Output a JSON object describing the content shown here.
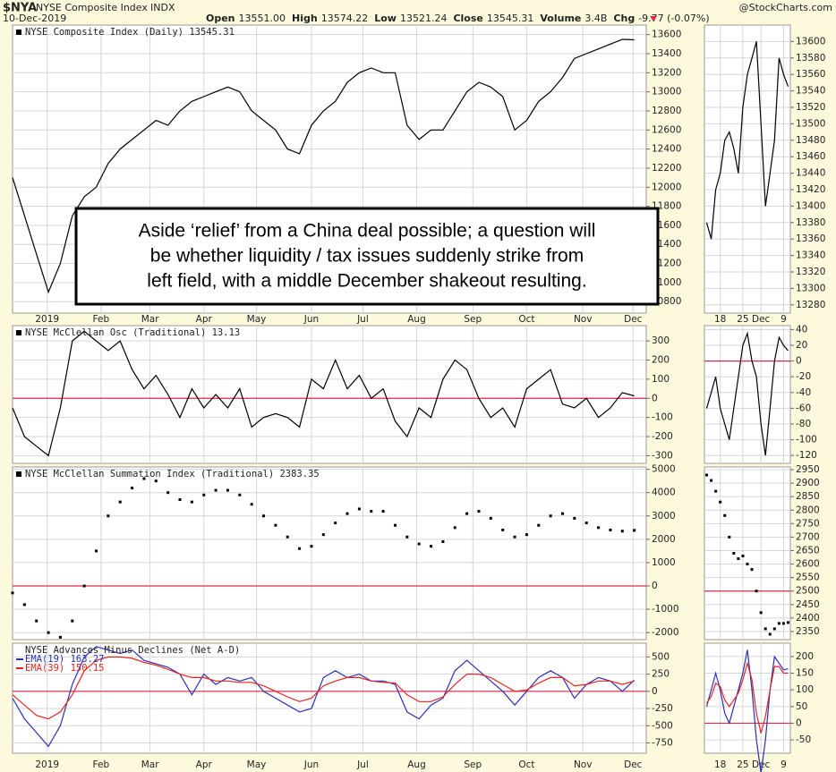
{
  "header": {
    "symbol": "$NYA",
    "name": "NYSE Composite Index",
    "exchange": "INDX",
    "date": "10-Dec-2019",
    "quote": [
      {
        "label": "Open",
        "value": "13551.00"
      },
      {
        "label": "High",
        "value": "13574.22"
      },
      {
        "label": "Low",
        "value": "13521.24"
      },
      {
        "label": "Close",
        "value": "13545.31"
      },
      {
        "label": "Volume",
        "value": "3.4B"
      },
      {
        "label": "Chg",
        "value": "-9.77 (-0.07%)"
      }
    ],
    "source": "@StockCharts.com"
  },
  "annotation": {
    "lines": [
      "Aside ‘relief’ from a China deal possible; a question will",
      "be whether liquidity / tax issues suddenly strike from",
      "left field, with a middle December shakeout resulting."
    ]
  },
  "chart_data": [
    {
      "type": "line",
      "title": "NYSE Composite Index (Daily) 13545.31",
      "x": [
        0,
        1,
        2,
        3,
        4,
        5,
        6,
        7,
        8,
        9,
        10,
        11,
        12,
        13,
        14,
        15,
        16,
        17,
        18,
        19,
        20,
        21,
        22,
        23,
        24,
        25,
        26,
        27,
        28,
        29,
        30,
        31,
        32,
        33,
        34,
        35,
        36,
        37,
        38,
        39,
        40,
        41,
        42,
        43,
        44,
        45,
        46,
        47,
        48,
        49,
        50,
        51,
        52
      ],
      "series": [
        {
          "color": "#000000",
          "values": [
            12100,
            11700,
            11300,
            10900,
            11200,
            11700,
            11900,
            12000,
            12250,
            12400,
            12500,
            12600,
            12700,
            12650,
            12800,
            12900,
            12950,
            13000,
            13050,
            13000,
            12800,
            12700,
            12600,
            12400,
            12350,
            12650,
            12800,
            12900,
            13100,
            13200,
            13250,
            13200,
            13200,
            12650,
            12500,
            12600,
            12600,
            12800,
            13000,
            13100,
            13050,
            12950,
            12600,
            12700,
            12900,
            13000,
            13150,
            13350,
            13400,
            13450,
            13500,
            13550,
            13545.31
          ]
        }
      ],
      "xlim": [
        0,
        53
      ],
      "ylim": [
        10680,
        13700
      ],
      "yticks": [
        10800,
        11000,
        11200,
        11400,
        11600,
        11800,
        12000,
        12200,
        12400,
        12600,
        12800,
        13000,
        13200,
        13400,
        13600
      ],
      "xticks": [
        {
          "value": 2.9,
          "label": "2019"
        },
        {
          "value": 7.4,
          "label": "Feb"
        },
        {
          "value": 11.5,
          "label": "Mar"
        },
        {
          "value": 16.0,
          "label": "Apr"
        },
        {
          "value": 20.4,
          "label": "May"
        },
        {
          "value": 25.0,
          "label": "Jun"
        },
        {
          "value": 29.3,
          "label": "Jul"
        },
        {
          "value": 33.8,
          "label": "Aug"
        },
        {
          "value": 38.5,
          "label": "Sep"
        },
        {
          "value": 43.0,
          "label": "Oct"
        },
        {
          "value": 47.7,
          "label": "Nov"
        },
        {
          "value": 51.9,
          "label": "Dec"
        }
      ],
      "grid": true
    },
    {
      "type": "line",
      "x": [
        0,
        1,
        2,
        3,
        4,
        5,
        6,
        7,
        8,
        9,
        10,
        11,
        12,
        13,
        14,
        15,
        16,
        17,
        18
      ],
      "series": [
        {
          "color": "#000000",
          "values": [
            13380,
            13360,
            13420,
            13440,
            13480,
            13490,
            13470,
            13440,
            13520,
            13560,
            13580,
            13600,
            13500,
            13400,
            13440,
            13480,
            13580,
            13560,
            13545.31
          ]
        }
      ],
      "xlim": [
        -0.5,
        18.5
      ],
      "ylim": [
        13270,
        13620
      ],
      "yticks": [
        13280,
        13300,
        13320,
        13340,
        13360,
        13380,
        13400,
        13420,
        13440,
        13460,
        13480,
        13500,
        13520,
        13540,
        13560,
        13580,
        13600
      ],
      "xticks": [
        {
          "value": 3,
          "label": "18"
        },
        {
          "value": 8,
          "label": "25"
        },
        {
          "value": 12,
          "label": "Dec"
        },
        {
          "value": 17,
          "label": "9"
        }
      ],
      "grid": true
    },
    {
      "type": "line",
      "title": "NYSE McClellan Osc (Traditional) 13.13",
      "x": [
        0,
        1,
        2,
        3,
        4,
        5,
        6,
        7,
        8,
        9,
        10,
        11,
        12,
        13,
        14,
        15,
        16,
        17,
        18,
        19,
        20,
        21,
        22,
        23,
        24,
        25,
        26,
        27,
        28,
        29,
        30,
        31,
        32,
        33,
        34,
        35,
        36,
        37,
        38,
        39,
        40,
        41,
        42,
        43,
        44,
        45,
        46,
        47,
        48,
        49,
        50,
        51,
        52
      ],
      "series": [
        {
          "color": "#000000",
          "values": [
            -50,
            -200,
            -250,
            -300,
            -50,
            300,
            350,
            300,
            250,
            300,
            150,
            50,
            120,
            20,
            -100,
            50,
            -50,
            20,
            -50,
            50,
            -150,
            -100,
            -80,
            -100,
            -150,
            100,
            50,
            200,
            50,
            120,
            0,
            50,
            -120,
            -200,
            -50,
            -100,
            100,
            200,
            150,
            0,
            -100,
            -50,
            -150,
            50,
            100,
            150,
            -30,
            -50,
            0,
            -100,
            -50,
            30,
            13.13
          ]
        }
      ],
      "xlim": [
        0,
        53
      ],
      "ylim": [
        -340,
        380
      ],
      "yticks": [
        -300,
        -200,
        -100,
        0,
        100,
        200,
        300
      ],
      "xticks": [
        2.9,
        7.4,
        11.5,
        16.0,
        20.4,
        25.0,
        29.3,
        33.8,
        38.5,
        43.0,
        47.7,
        51.9
      ],
      "grid": true,
      "hline": 0,
      "hline_color": "#e0284a"
    },
    {
      "type": "line",
      "x": [
        0,
        1,
        2,
        3,
        4,
        5,
        6,
        7,
        8,
        9,
        10,
        11,
        12,
        13,
        14,
        15,
        16,
        17,
        18
      ],
      "series": [
        {
          "color": "#000000",
          "values": [
            -60,
            -40,
            -20,
            -60,
            -80,
            -100,
            -60,
            -20,
            20,
            35,
            0,
            -20,
            -80,
            -120,
            -60,
            0,
            30,
            20,
            13.13
          ]
        }
      ],
      "xlim": [
        -0.5,
        18.5
      ],
      "ylim": [
        -130,
        45
      ],
      "yticks": [
        -120,
        -100,
        -80,
        -60,
        -40,
        -20,
        0,
        20,
        40
      ],
      "xticks": [
        3,
        8,
        12,
        17
      ],
      "grid": true,
      "hline": 0,
      "hline_color": "#e0284a"
    },
    {
      "type": "scatter",
      "title": "NYSE McClellan Summation Index (Traditional) 2383.35",
      "x": [
        0,
        1,
        2,
        3,
        4,
        5,
        6,
        7,
        8,
        9,
        10,
        11,
        12,
        13,
        14,
        15,
        16,
        17,
        18,
        19,
        20,
        21,
        22,
        23,
        24,
        25,
        26,
        27,
        28,
        29,
        30,
        31,
        32,
        33,
        34,
        35,
        36,
        37,
        38,
        39,
        40,
        41,
        42,
        43,
        44,
        45,
        46,
        47,
        48,
        49,
        50,
        51,
        52
      ],
      "series": [
        {
          "color": "#000000",
          "values": [
            -300,
            -800,
            -1500,
            -2000,
            -2200,
            -1500,
            0,
            1500,
            3000,
            3600,
            4200,
            4600,
            4500,
            4000,
            3700,
            3600,
            3900,
            4100,
            4100,
            3900,
            3500,
            3000,
            2600,
            2100,
            1600,
            1700,
            2200,
            2700,
            3100,
            3300,
            3200,
            3200,
            2600,
            2100,
            1800,
            1700,
            1900,
            2500,
            3100,
            3200,
            2900,
            2400,
            2100,
            2200,
            2600,
            3000,
            3100,
            2900,
            2700,
            2500,
            2400,
            2350,
            2383.35
          ]
        }
      ],
      "xlim": [
        0,
        53
      ],
      "ylim": [
        -2300,
        5100
      ],
      "yticks": [
        -2000,
        -1000,
        0,
        1000,
        2000,
        3000,
        4000,
        5000
      ],
      "xticks": [
        2.9,
        7.4,
        11.5,
        16.0,
        20.4,
        25.0,
        29.3,
        33.8,
        38.5,
        43.0,
        47.7,
        51.9
      ],
      "grid": true,
      "hline": 0,
      "hline_color": "#e0284a"
    },
    {
      "type": "scatter",
      "x": [
        0,
        1,
        2,
        3,
        4,
        5,
        6,
        7,
        8,
        9,
        10,
        11,
        12,
        13,
        14,
        15,
        16,
        17,
        18
      ],
      "series": [
        {
          "color": "#000000",
          "values": [
            2930,
            2910,
            2870,
            2830,
            2780,
            2700,
            2640,
            2620,
            2630,
            2600,
            2580,
            2500,
            2420,
            2360,
            2340,
            2360,
            2380,
            2380,
            2383.35
          ]
        }
      ],
      "xlim": [
        -0.5,
        18.5
      ],
      "ylim": [
        2320,
        2960
      ],
      "yticks": [
        2350,
        2400,
        2450,
        2500,
        2550,
        2600,
        2650,
        2700,
        2750,
        2800,
        2850,
        2900,
        2950
      ],
      "xticks": [
        3,
        8,
        12,
        17
      ],
      "grid": true,
      "hline": 2500,
      "hline_color": "#e0284a"
    },
    {
      "type": "line",
      "title": "NYSE Advances Minus Declines (Net A-D)",
      "x": [
        0,
        1,
        2,
        3,
        4,
        5,
        6,
        7,
        8,
        9,
        10,
        11,
        12,
        13,
        14,
        15,
        16,
        17,
        18,
        19,
        20,
        21,
        22,
        23,
        24,
        25,
        26,
        27,
        28,
        29,
        30,
        31,
        32,
        33,
        34,
        35,
        36,
        37,
        38,
        39,
        40,
        41,
        42,
        43,
        44,
        45,
        46,
        47,
        48,
        49,
        50,
        51,
        52
      ],
      "series": [
        {
          "name": "EMA(19) 163.27",
          "color": "#2b2fb5",
          "values": [
            -100,
            -400,
            -600,
            -800,
            -500,
            100,
            500,
            650,
            600,
            550,
            600,
            450,
            400,
            350,
            250,
            -50,
            250,
            100,
            200,
            150,
            200,
            0,
            -100,
            -200,
            -300,
            -250,
            200,
            300,
            200,
            250,
            150,
            150,
            100,
            -300,
            -400,
            -200,
            -100,
            300,
            450,
            300,
            150,
            0,
            -200,
            0,
            200,
            300,
            200,
            -100,
            100,
            200,
            150,
            0,
            163.27
          ]
        },
        {
          "name": "EMA(39) 150.15",
          "color": "#e8231f",
          "values": [
            -50,
            -200,
            -350,
            -400,
            -300,
            -50,
            300,
            450,
            500,
            500,
            480,
            420,
            380,
            320,
            250,
            200,
            200,
            150,
            150,
            130,
            130,
            80,
            0,
            -80,
            -150,
            -100,
            80,
            150,
            200,
            200,
            150,
            130,
            120,
            -50,
            -150,
            -150,
            -80,
            100,
            250,
            250,
            200,
            100,
            0,
            20,
            120,
            200,
            200,
            80,
            100,
            150,
            150,
            100,
            150.15
          ]
        }
      ],
      "xlim": [
        0,
        53
      ],
      "ylim": [
        -900,
        700
      ],
      "yticks": [
        -750,
        -500,
        -250,
        0,
        250,
        500
      ],
      "xticks": [
        {
          "value": 2.9,
          "label": "2019"
        },
        {
          "value": 7.4,
          "label": "Feb"
        },
        {
          "value": 11.5,
          "label": "Mar"
        },
        {
          "value": 16.0,
          "label": "Apr"
        },
        {
          "value": 20.4,
          "label": "May"
        },
        {
          "value": 25.0,
          "label": "Jun"
        },
        {
          "value": 29.3,
          "label": "Jul"
        },
        {
          "value": 33.8,
          "label": "Aug"
        },
        {
          "value": 38.5,
          "label": "Sep"
        },
        {
          "value": 43.0,
          "label": "Oct"
        },
        {
          "value": 47.7,
          "label": "Nov"
        },
        {
          "value": 51.9,
          "label": "Dec"
        }
      ],
      "grid": true,
      "hline": 0,
      "hline_color": "#e0284a"
    },
    {
      "type": "line",
      "x": [
        0,
        1,
        2,
        3,
        4,
        5,
        6,
        7,
        8,
        9,
        10,
        11,
        12,
        13,
        14,
        15,
        16,
        17,
        18
      ],
      "series": [
        {
          "color": "#2b2fb5",
          "values": [
            50,
            100,
            150,
            100,
            30,
            0,
            50,
            100,
            150,
            220,
            100,
            -50,
            -150,
            -50,
            100,
            200,
            180,
            160,
            163.27
          ]
        },
        {
          "color": "#e8231f",
          "values": [
            60,
            80,
            120,
            110,
            70,
            50,
            70,
            90,
            130,
            180,
            130,
            30,
            -30,
            20,
            100,
            170,
            170,
            150,
            150.15
          ]
        }
      ],
      "xlim": [
        -0.5,
        18.5
      ],
      "ylim": [
        -90,
        240
      ],
      "yticks": [
        -50,
        0,
        50,
        100,
        150,
        200
      ],
      "xticks": [
        {
          "value": 3,
          "label": "18"
        },
        {
          "value": 8,
          "label": "25"
        },
        {
          "value": 12,
          "label": "Dec"
        },
        {
          "value": 17,
          "label": "9"
        }
      ],
      "grid": true,
      "hline": 0,
      "hline_color": "#e0284a"
    }
  ]
}
